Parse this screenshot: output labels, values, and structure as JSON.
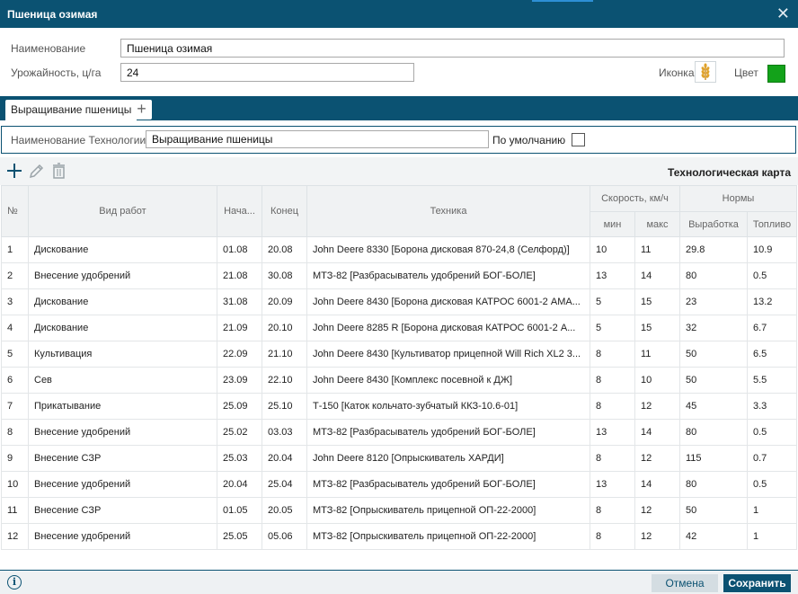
{
  "dialog": {
    "title": "Пшеница озимая",
    "close_icon": "close-icon"
  },
  "form": {
    "name_label": "Наименование",
    "name_value": "Пшеница озимая",
    "yield_label": "Урожайность, ц/га",
    "yield_value": "24",
    "icon_label": "Иконка",
    "icon_name": "wheat-icon",
    "color_label": "Цвет",
    "color_value": "#13a21a"
  },
  "tabs": {
    "active_label": "Выращивание пшеницы",
    "add_icon": "plus-icon"
  },
  "technology": {
    "name_label": "Наименование Технологии",
    "name_value": "Выращивание пшеницы",
    "default_label": "По умолчанию",
    "default_checked": false
  },
  "toolbar": {
    "add_icon": "plus-icon",
    "edit_icon": "pencil-icon",
    "delete_icon": "trash-icon",
    "map_title": "Технологическая карта"
  },
  "table": {
    "headers": {
      "num": "№",
      "work": "Вид работ",
      "start": "Нача...",
      "end": "Конец",
      "machinery": "Техника",
      "speed": "Скорость, км/ч",
      "speed_min": "мин",
      "speed_max": "макс",
      "norms": "Нормы",
      "output": "Выработка",
      "fuel": "Топливо"
    },
    "rows": [
      [
        "1",
        "Дискование",
        "01.08",
        "20.08",
        "John Deere 8330 [Борона дисковая 870-24,8 (Селфорд)]",
        "10",
        "11",
        "29.8",
        "10.9"
      ],
      [
        "2",
        "Внесение удобрений",
        "21.08",
        "30.08",
        "МТЗ-82 [Разбрасыватель удобрений БОГ-БОЛЕ]",
        "13",
        "14",
        "80",
        "0.5"
      ],
      [
        "3",
        "Дискование",
        "31.08",
        "20.09",
        "John Deere 8430 [Борона дисковая КАТРОС 6001-2 АМА...",
        "5",
        "15",
        "23",
        "13.2"
      ],
      [
        "4",
        "Дискование",
        "21.09",
        "20.10",
        "John Deere 8285 R [Борона дисковая КАТРОС 6001-2 А...",
        "5",
        "15",
        "32",
        "6.7"
      ],
      [
        "5",
        "Культивация",
        "22.09",
        "21.10",
        "John Deere 8430 [Культиватор прицепной Will Rich XL2 3...",
        "8",
        "11",
        "50",
        "6.5"
      ],
      [
        "6",
        "Сев",
        "23.09",
        "22.10",
        "John Deere 8430 [Комплекс посевной к ДЖ]",
        "8",
        "10",
        "50",
        "5.5"
      ],
      [
        "7",
        "Прикатывание",
        "25.09",
        "25.10",
        "Т-150 [Каток кольчато-зубчатый ККЗ-10.6-01]",
        "8",
        "12",
        "45",
        "3.3"
      ],
      [
        "8",
        "Внесение удобрений",
        "25.02",
        "03.03",
        "МТЗ-82 [Разбрасыватель удобрений БОГ-БОЛЕ]",
        "13",
        "14",
        "80",
        "0.5"
      ],
      [
        "9",
        "Внесение СЗР",
        "25.03",
        "20.04",
        "John Deere 8120 [Опрыскиватель ХАРДИ]",
        "8",
        "12",
        "115",
        "0.7"
      ],
      [
        "10",
        "Внесение удобрений",
        "20.04",
        "25.04",
        "МТЗ-82 [Разбрасыватель удобрений БОГ-БОЛЕ]",
        "13",
        "14",
        "80",
        "0.5"
      ],
      [
        "11",
        "Внесение СЗР",
        "01.05",
        "20.05",
        "МТЗ-82 [Опрыскиватель прицепной ОП-22-2000]",
        "8",
        "12",
        "50",
        "1"
      ],
      [
        "12",
        "Внесение удобрений",
        "25.05",
        "05.06",
        "МТЗ-82 [Опрыскиватель прицепной ОП-22-2000]",
        "8",
        "12",
        "42",
        "1"
      ]
    ]
  },
  "footer": {
    "info_icon": "info-icon",
    "cancel_label": "Отмена",
    "save_label": "Сохранить"
  },
  "colors": {
    "brand": "#0b5272",
    "accent": "#2d8fd5"
  }
}
